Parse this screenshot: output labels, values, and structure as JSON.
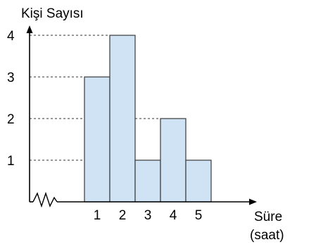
{
  "chart_data": {
    "type": "bar",
    "title": "",
    "ylabel": "Kişi Sayısı",
    "xlabel_line1": "Süre",
    "xlabel_line2": "(saat)",
    "categories": [
      "1",
      "2",
      "3",
      "4",
      "5"
    ],
    "values": [
      3,
      4,
      1,
      2,
      1
    ],
    "yticks": [
      "1",
      "2",
      "3",
      "4"
    ],
    "ylim": [
      0,
      4
    ],
    "grid": "dashed reference lines at bar tops",
    "axis_break": "zigzag on x-axis",
    "colors": {
      "bar_fill": "#cfe3f5",
      "bar_stroke": "#3a3a3a",
      "axis": "#000000"
    }
  }
}
